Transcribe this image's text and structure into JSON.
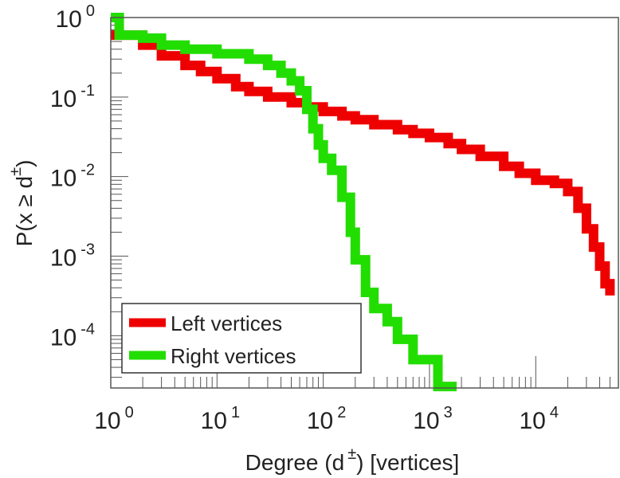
{
  "chart_data": {
    "type": "line",
    "scale": {
      "x": "log",
      "y": "log"
    },
    "xlim": [
      1,
      60000
    ],
    "ylim": [
      2.2e-05,
      1
    ],
    "xlabel": {
      "main": "Degree (d",
      "sup": "±",
      "tail": ") [vertices]"
    },
    "ylabel": {
      "main": "P(x ≥ d",
      "sup": "±",
      "tail": ")"
    },
    "x_ticks": [
      {
        "value": 1,
        "base": "10",
        "exp": "0"
      },
      {
        "value": 10,
        "base": "10",
        "exp": "1"
      },
      {
        "value": 100,
        "base": "10",
        "exp": "2"
      },
      {
        "value": 1000,
        "base": "10",
        "exp": "3"
      },
      {
        "value": 10000,
        "base": "10",
        "exp": "4"
      }
    ],
    "y_ticks": [
      {
        "value": 1,
        "base": "10",
        "exp": "0"
      },
      {
        "value": 0.1,
        "base": "10",
        "exp": "-1"
      },
      {
        "value": 0.01,
        "base": "10",
        "exp": "-2"
      },
      {
        "value": 0.001,
        "base": "10",
        "exp": "-3"
      },
      {
        "value": 0.0001,
        "base": "10",
        "exp": "-4"
      }
    ],
    "legend_position": "bottom-left",
    "series": [
      {
        "name": "Left vertices",
        "color": "#ee0000",
        "points": [
          [
            1,
            0.6
          ],
          [
            2,
            0.45
          ],
          [
            3,
            0.33
          ],
          [
            5,
            0.25
          ],
          [
            7,
            0.21
          ],
          [
            10,
            0.17
          ],
          [
            15,
            0.135
          ],
          [
            20,
            0.118
          ],
          [
            30,
            0.1
          ],
          [
            50,
            0.085
          ],
          [
            70,
            0.075
          ],
          [
            100,
            0.066
          ],
          [
            150,
            0.058
          ],
          [
            200,
            0.052
          ],
          [
            300,
            0.045
          ],
          [
            500,
            0.039
          ],
          [
            700,
            0.035
          ],
          [
            1000,
            0.031
          ],
          [
            1500,
            0.026
          ],
          [
            2000,
            0.022
          ],
          [
            3000,
            0.018
          ],
          [
            5000,
            0.0135
          ],
          [
            7000,
            0.011
          ],
          [
            10000,
            0.009
          ],
          [
            15000,
            0.0082
          ],
          [
            20000,
            0.0065
          ],
          [
            25000,
            0.004
          ],
          [
            30000,
            0.0022
          ],
          [
            35000,
            0.0013
          ],
          [
            40000,
            0.00075
          ],
          [
            45000,
            0.00045
          ],
          [
            50000,
            0.00032
          ]
        ]
      },
      {
        "name": "Right vertices",
        "color": "#22dd00",
        "points": [
          [
            1,
            1
          ],
          [
            1.2,
            0.6
          ],
          [
            2,
            0.55
          ],
          [
            3,
            0.45
          ],
          [
            5,
            0.4
          ],
          [
            10,
            0.35
          ],
          [
            20,
            0.3
          ],
          [
            30,
            0.25
          ],
          [
            40,
            0.2
          ],
          [
            50,
            0.16
          ],
          [
            60,
            0.12
          ],
          [
            70,
            0.07
          ],
          [
            80,
            0.04
          ],
          [
            90,
            0.025
          ],
          [
            100,
            0.017
          ],
          [
            120,
            0.012
          ],
          [
            150,
            0.0055
          ],
          [
            180,
            0.002
          ],
          [
            200,
            0.0009
          ],
          [
            250,
            0.00035
          ],
          [
            300,
            0.00022
          ],
          [
            400,
            0.00015
          ],
          [
            500,
            9e-05
          ],
          [
            700,
            5e-05
          ],
          [
            1000,
            5e-05
          ],
          [
            1200,
            2.3e-05
          ],
          [
            1800,
            2.3e-05
          ]
        ]
      }
    ]
  }
}
